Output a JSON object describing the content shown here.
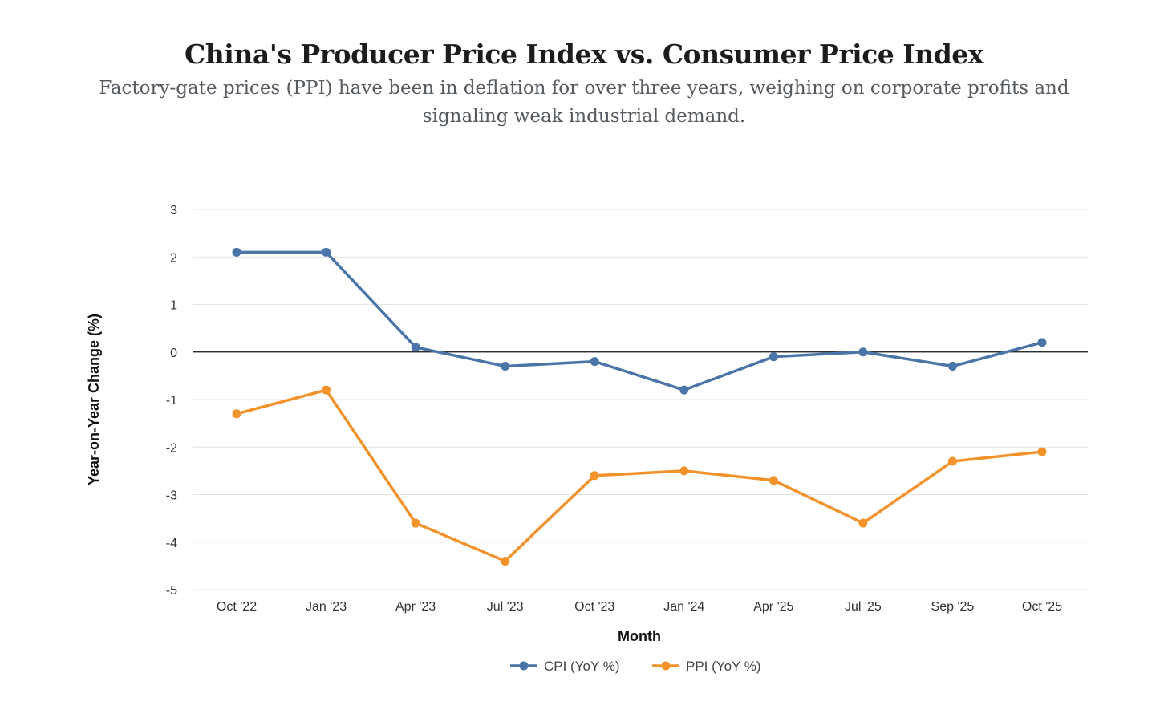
{
  "chart_data": {
    "type": "line",
    "title": "China's Producer Price Index vs. Consumer Price Index",
    "subtitle": "Factory-gate prices (PPI) have been in deflation for over three years, weighing on corporate profits and signaling weak industrial demand.",
    "xlabel": "Month",
    "ylabel": "Year-on-Year Change (%)",
    "ylim": [
      -5,
      3
    ],
    "yticks": [
      3,
      2,
      1,
      0,
      -1,
      -2,
      -3,
      -4,
      -5
    ],
    "categories": [
      "Oct '22",
      "Jan '23",
      "Apr '23",
      "Jul '23",
      "Oct '23",
      "Jan '24",
      "Apr '25",
      "Jul '25",
      "Sep '25",
      "Oct '25"
    ],
    "grid": true,
    "legend_position": "bottom-center",
    "series": [
      {
        "name": "CPI (YoY %)",
        "color": "#4a75a8",
        "values": [
          2.1,
          2.1,
          0.1,
          -0.3,
          -0.2,
          -0.8,
          -0.1,
          0.0,
          -0.3,
          0.2
        ]
      },
      {
        "name": "PPI (YoY %)",
        "color": "#f2922a",
        "values": [
          -1.3,
          -0.8,
          -3.6,
          -4.4,
          -2.6,
          -2.5,
          -2.7,
          -3.6,
          -2.3,
          -2.1
        ]
      }
    ]
  }
}
